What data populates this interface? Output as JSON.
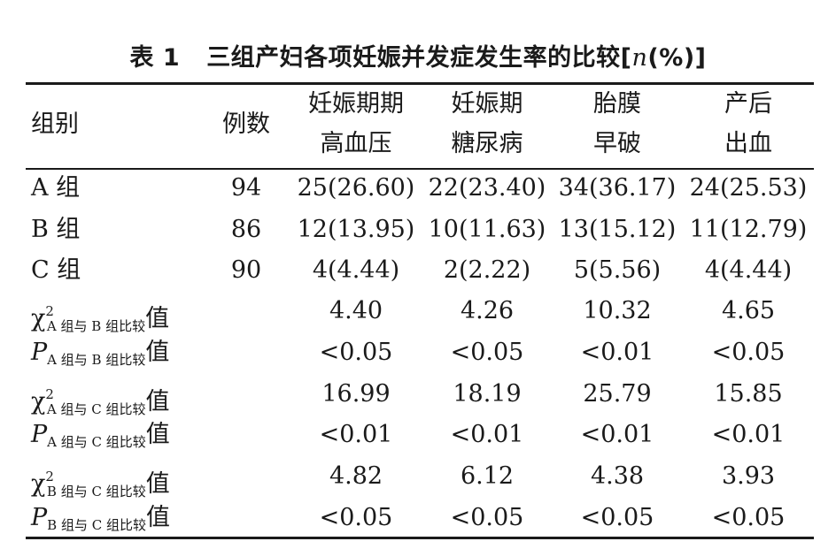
{
  "caption": {
    "number": "表 1",
    "title": "三组产妇各项妊娠并发症发生率的比较[",
    "n": "n",
    "unit": "(%)]"
  },
  "header": {
    "group": "组别",
    "count": "例数",
    "cols": [
      {
        "line1": "妊娠期期",
        "line2": "高血压"
      },
      {
        "line1": "妊娠期",
        "line2": "糖尿病"
      },
      {
        "line1": "胎膜",
        "line2": "早破"
      },
      {
        "line1": "产后",
        "line2": "出血"
      }
    ]
  },
  "groups": [
    {
      "label": "A 组",
      "count": "94",
      "values": [
        "25(26.60)",
        "22(23.40)",
        "34(36.17)",
        "24(25.53)"
      ]
    },
    {
      "label": "B 组",
      "count": "86",
      "values": [
        "12(13.95)",
        "10(11.63)",
        "13(15.12)",
        "11(12.79)"
      ]
    },
    {
      "label": "C 组",
      "count": "90",
      "values": [
        "4(4.44)",
        "2(2.22)",
        "5(5.56)",
        "4(4.44)"
      ]
    }
  ],
  "stats": [
    {
      "sym": "χ",
      "sup": "2",
      "sub": "A 组与 B 组比较",
      "suffix": "值",
      "values": [
        "4.40",
        "4.26",
        "10.32",
        "4.65"
      ]
    },
    {
      "sym": "P",
      "sup": "",
      "sub": "A 组与 B 组比较",
      "suffix": "值",
      "values": [
        "<0.05",
        "<0.05",
        "<0.01",
        "<0.05"
      ]
    },
    {
      "sym": "χ",
      "sup": "2",
      "sub": "A 组与 C 组比较",
      "suffix": "值",
      "values": [
        "16.99",
        "18.19",
        "25.79",
        "15.85"
      ]
    },
    {
      "sym": "P",
      "sup": "",
      "sub": "A 组与 C 组比较",
      "suffix": "值",
      "values": [
        "<0.01",
        "<0.01",
        "<0.01",
        "<0.01"
      ]
    },
    {
      "sym": "χ",
      "sup": "2",
      "sub": "B 组与 C 组比较",
      "suffix": "值",
      "values": [
        "4.82",
        "6.12",
        "4.38",
        "3.93"
      ]
    },
    {
      "sym": "P",
      "sup": "",
      "sub": "B 组与 C 组比较",
      "suffix": "值",
      "values": [
        "<0.05",
        "<0.05",
        "<0.05",
        "<0.05"
      ]
    }
  ]
}
